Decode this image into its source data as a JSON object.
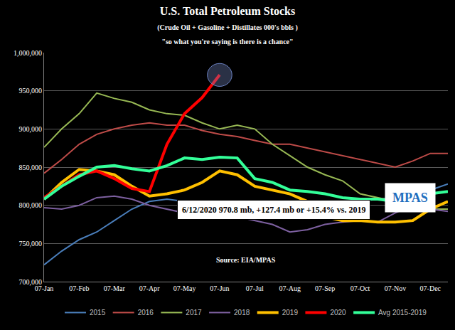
{
  "chart_data": {
    "type": "line",
    "title": "U.S. Total Petroleum Stocks",
    "subtitle": [
      "(Crude Oil + Gasoline + Distillates 000's bbls )",
      "\"so what you're saying is there is a chance\""
    ],
    "annotations": [
      "6/12/2020 970.8 mb, +127.4 mb or +15.4% vs. 2019",
      "Source: EIA/MPAS",
      "MPAS"
    ],
    "categories": [
      "07-Jan",
      null,
      "07-Feb",
      null,
      "07-Mar",
      null,
      "07-Apr",
      null,
      "07-May",
      null,
      "07-Jun",
      null,
      "07-Jul",
      null,
      "07-Aug",
      null,
      "07-Sep",
      null,
      "07-Oct",
      null,
      "07-Nov",
      null,
      "07-Dec",
      null
    ],
    "series": [
      {
        "name": "2015",
        "color": "#4a7ebb",
        "values": [
          722000,
          740000,
          755000,
          765000,
          780000,
          795000,
          805000,
          808000,
          805000,
          800000,
          795000,
          790000,
          785000,
          788000,
          785000,
          785000,
          795000,
          800000,
          805000,
          808000,
          810000,
          812000,
          820000,
          828000
        ]
      },
      {
        "name": "2016",
        "color": "#be4b48",
        "values": [
          842000,
          860000,
          880000,
          893000,
          900000,
          905000,
          908000,
          905000,
          905000,
          898000,
          893000,
          890000,
          885000,
          880000,
          880000,
          875000,
          870000,
          865000,
          860000,
          855000,
          850000,
          858000,
          868000,
          868000
        ]
      },
      {
        "name": "2017",
        "color": "#98b954",
        "values": [
          876000,
          900000,
          920000,
          947000,
          940000,
          935000,
          925000,
          920000,
          918000,
          908000,
          900000,
          905000,
          900000,
          880000,
          865000,
          850000,
          840000,
          832000,
          815000,
          810000,
          805000,
          800000,
          795000,
          795000
        ]
      },
      {
        "name": "2018",
        "color": "#7d60a0",
        "values": [
          797000,
          795000,
          800000,
          810000,
          812000,
          808000,
          800000,
          795000,
          790000,
          782000,
          785000,
          785000,
          780000,
          775000,
          765000,
          768000,
          775000,
          778000,
          780000,
          778000,
          790000,
          800000,
          795000,
          792000
        ]
      },
      {
        "name": "2019",
        "color": "#ffc000",
        "values": [
          808000,
          830000,
          847000,
          845000,
          840000,
          825000,
          812000,
          815000,
          820000,
          830000,
          845000,
          840000,
          825000,
          820000,
          815000,
          805000,
          785000,
          780000,
          780000,
          778000,
          778000,
          780000,
          795000,
          805000
        ]
      },
      {
        "name": "2020",
        "color": "#ff0000",
        "values": [
          810000,
          825000,
          840000,
          845000,
          835000,
          822000,
          818000,
          880000,
          920000,
          941000,
          970800,
          null,
          null,
          null,
          null,
          null,
          null,
          null,
          null,
          null,
          null,
          null,
          null,
          null
        ]
      },
      {
        "name": "Avg 2015-2019",
        "color": "#33ff99",
        "values": [
          808000,
          825000,
          838000,
          850000,
          852000,
          848000,
          845000,
          852000,
          862000,
          860000,
          863000,
          862000,
          835000,
          830000,
          820000,
          818000,
          815000,
          810000,
          808000,
          808000,
          805000,
          808000,
          815000,
          818000
        ]
      }
    ],
    "ylim": [
      700000,
      1000000
    ],
    "yticks": [
      {
        "value": 700000,
        "label": "700,000"
      },
      {
        "value": 750000,
        "label": "750,000"
      },
      {
        "value": 800000,
        "label": "800,000"
      },
      {
        "value": 850000,
        "label": "850,000"
      },
      {
        "value": 900000,
        "label": "900,000"
      },
      {
        "value": 950000,
        "label": "950,000"
      },
      {
        "value": 1000000,
        "label": "1,000,000"
      }
    ],
    "grid": true,
    "legend": "bottom"
  }
}
